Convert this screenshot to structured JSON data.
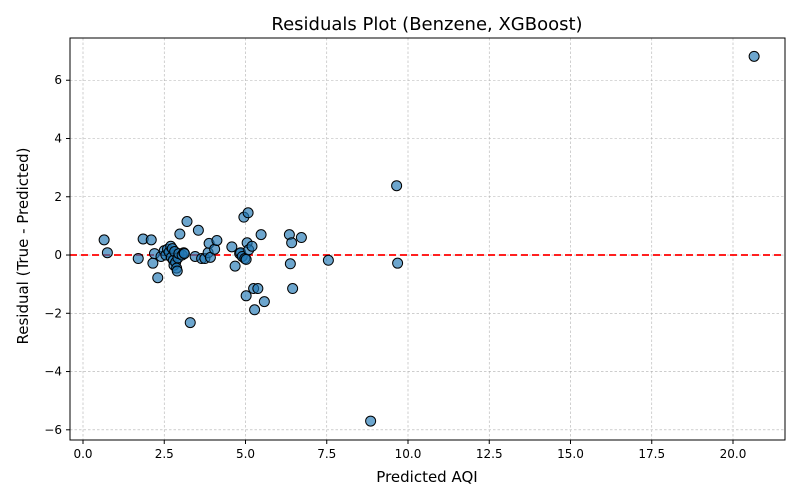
{
  "chart_data": {
    "type": "scatter",
    "title": "Residuals Plot (Benzene, XGBoost)",
    "xlabel": "Predicted AQI",
    "ylabel": "Residual (True - Predicted)",
    "xlim": [
      -0.4,
      21.6
    ],
    "ylim": [
      -6.35,
      7.45
    ],
    "xticks": [
      0.0,
      2.5,
      5.0,
      7.5,
      10.0,
      12.5,
      15.0,
      17.5,
      20.0
    ],
    "xtick_labels": [
      "0.0",
      "2.5",
      "5.0",
      "7.5",
      "10.0",
      "12.5",
      "15.0",
      "17.5",
      "20.0"
    ],
    "yticks": [
      -6,
      -4,
      -2,
      0,
      2,
      4,
      6
    ],
    "ytick_labels": [
      "−6",
      "−4",
      "−2",
      "0",
      "2",
      "4",
      "6"
    ],
    "grid": true,
    "reference_line": {
      "y": 0,
      "color": "#ff0000",
      "style": "dashed"
    },
    "marker_color": "#1f77b4",
    "points": [
      {
        "x": 0.65,
        "y": 0.52
      },
      {
        "x": 0.75,
        "y": 0.08
      },
      {
        "x": 1.7,
        "y": -0.12
      },
      {
        "x": 1.85,
        "y": 0.55
      },
      {
        "x": 2.1,
        "y": 0.52
      },
      {
        "x": 2.15,
        "y": -0.28
      },
      {
        "x": 2.2,
        "y": 0.05
      },
      {
        "x": 2.3,
        "y": -0.78
      },
      {
        "x": 2.4,
        "y": -0.05
      },
      {
        "x": 2.5,
        "y": 0.15
      },
      {
        "x": 2.55,
        "y": 0.0
      },
      {
        "x": 2.6,
        "y": 0.2
      },
      {
        "x": 2.65,
        "y": 0.1
      },
      {
        "x": 2.7,
        "y": 0.3
      },
      {
        "x": 2.72,
        "y": -0.08
      },
      {
        "x": 2.75,
        "y": 0.22
      },
      {
        "x": 2.78,
        "y": -0.18
      },
      {
        "x": 2.8,
        "y": -0.35
      },
      {
        "x": 2.82,
        "y": 0.12
      },
      {
        "x": 2.85,
        "y": -0.25
      },
      {
        "x": 2.88,
        "y": -0.45
      },
      {
        "x": 2.9,
        "y": -0.55
      },
      {
        "x": 2.92,
        "y": -0.1
      },
      {
        "x": 2.95,
        "y": 0.05
      },
      {
        "x": 2.98,
        "y": 0.72
      },
      {
        "x": 3.05,
        "y": 0.0
      },
      {
        "x": 3.1,
        "y": 0.08
      },
      {
        "x": 3.12,
        "y": 0.05
      },
      {
        "x": 3.2,
        "y": 1.15
      },
      {
        "x": 3.3,
        "y": -2.32
      },
      {
        "x": 3.45,
        "y": -0.05
      },
      {
        "x": 3.55,
        "y": 0.85
      },
      {
        "x": 3.65,
        "y": -0.12
      },
      {
        "x": 3.75,
        "y": -0.12
      },
      {
        "x": 3.85,
        "y": 0.08
      },
      {
        "x": 3.88,
        "y": 0.4
      },
      {
        "x": 3.92,
        "y": -0.08
      },
      {
        "x": 4.05,
        "y": 0.2
      },
      {
        "x": 4.12,
        "y": 0.5
      },
      {
        "x": 4.58,
        "y": 0.28
      },
      {
        "x": 4.68,
        "y": -0.38
      },
      {
        "x": 4.82,
        "y": 0.05
      },
      {
        "x": 4.85,
        "y": 0.08
      },
      {
        "x": 4.9,
        "y": -0.05
      },
      {
        "x": 4.95,
        "y": 1.3
      },
      {
        "x": 4.98,
        "y": -0.12
      },
      {
        "x": 5.02,
        "y": -0.15
      },
      {
        "x": 5.02,
        "y": -1.4
      },
      {
        "x": 5.05,
        "y": 0.42
      },
      {
        "x": 5.08,
        "y": 1.45
      },
      {
        "x": 5.1,
        "y": 0.18
      },
      {
        "x": 5.2,
        "y": 0.3
      },
      {
        "x": 5.25,
        "y": -1.15
      },
      {
        "x": 5.28,
        "y": -1.88
      },
      {
        "x": 5.38,
        "y": -1.15
      },
      {
        "x": 5.48,
        "y": 0.7
      },
      {
        "x": 5.58,
        "y": -1.6
      },
      {
        "x": 6.35,
        "y": 0.7
      },
      {
        "x": 6.38,
        "y": -0.3
      },
      {
        "x": 6.42,
        "y": 0.42
      },
      {
        "x": 6.45,
        "y": -1.15
      },
      {
        "x": 6.72,
        "y": 0.6
      },
      {
        "x": 7.55,
        "y": -0.18
      },
      {
        "x": 8.85,
        "y": -5.7
      },
      {
        "x": 9.65,
        "y": 2.38
      },
      {
        "x": 9.68,
        "y": -0.28
      },
      {
        "x": 20.65,
        "y": 6.82
      }
    ]
  }
}
